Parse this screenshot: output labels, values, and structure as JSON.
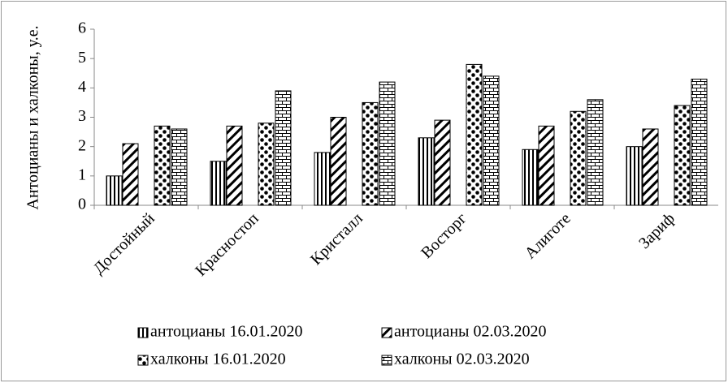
{
  "chart_data": {
    "type": "bar",
    "y_label": "Антоцианы и халконы, у.е.",
    "categories": [
      "Достойный",
      "Красностоп",
      "Кристалл",
      "Восторг",
      "Алиготе",
      "Зариф"
    ],
    "series": [
      {
        "name": "антоцианы 16.01.2020",
        "color": "#000000",
        "pattern": "vertical",
        "values": [
          1.0,
          1.5,
          1.8,
          2.3,
          1.9,
          2.0
        ]
      },
      {
        "name": "антоцианы 02.03.2020",
        "color": "#000000",
        "pattern": "diagonal",
        "values": [
          2.1,
          2.7,
          3.0,
          2.9,
          2.7,
          2.6
        ]
      },
      {
        "name": "халконы 16.01.2020",
        "color": "#000000",
        "pattern": "dots",
        "values": [
          2.7,
          2.8,
          3.5,
          4.8,
          3.2,
          3.4
        ]
      },
      {
        "name": "халконы 02.03.2020",
        "color": "#000000",
        "pattern": "brick",
        "values": [
          2.6,
          3.9,
          4.2,
          4.4,
          3.6,
          4.3
        ]
      }
    ],
    "ylim": [
      0,
      6
    ],
    "yticks": [
      0,
      1,
      2,
      3,
      4,
      5,
      6
    ],
    "grid": false,
    "legend": "bottom"
  }
}
